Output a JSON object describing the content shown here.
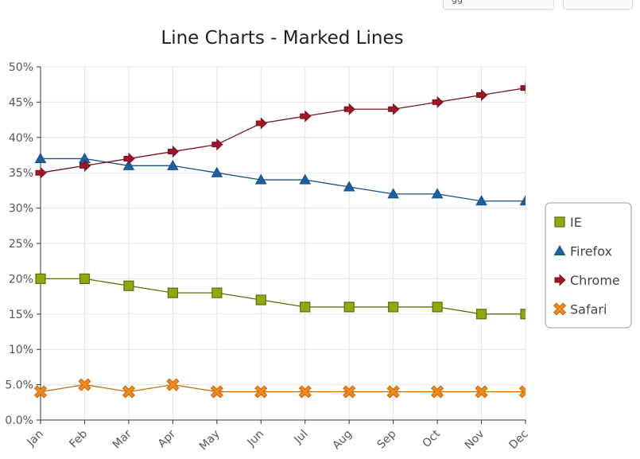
{
  "toolbar": {
    "button_1_label": "gg",
    "button_2_label": ""
  },
  "chart_data": {
    "type": "line",
    "title": "Line Charts - Marked Lines",
    "xlabel": "",
    "ylabel": "",
    "categories": [
      "Jan",
      "Feb",
      "Mar",
      "Apr",
      "May",
      "Jun",
      "Jul",
      "Aug",
      "Sep",
      "Oct",
      "Nov",
      "Dec"
    ],
    "ylim": [
      0,
      50
    ],
    "yticks": [
      "0.0%",
      "5.0%",
      "10%",
      "15%",
      "20%",
      "25%",
      "30%",
      "35%",
      "40%",
      "45%",
      "50%"
    ],
    "grid": true,
    "legend_position": "right",
    "series": [
      {
        "name": "IE",
        "marker": "square",
        "color": "#8bab0f",
        "line_color": "#5a6e0a",
        "values": [
          20,
          20,
          19,
          18,
          18,
          17,
          16,
          16,
          16,
          16,
          15,
          15
        ]
      },
      {
        "name": "Firefox",
        "marker": "triangle",
        "color": "#1c5fa3",
        "line_color": "#1c4f83",
        "values": [
          37,
          37,
          36,
          36,
          35,
          34,
          34,
          33,
          32,
          32,
          31,
          31
        ]
      },
      {
        "name": "Chrome",
        "marker": "arrow",
        "color": "#9e1625",
        "line_color": "#7a1320",
        "values": [
          35,
          36,
          37,
          38,
          39,
          42,
          43,
          44,
          44,
          45,
          46,
          47
        ]
      },
      {
        "name": "Safari",
        "marker": "x",
        "color": "#f08a1c",
        "line_color": "#c66a0a",
        "values": [
          4,
          5,
          4,
          5,
          4,
          4,
          4,
          4,
          4,
          4,
          4,
          4
        ]
      }
    ]
  }
}
